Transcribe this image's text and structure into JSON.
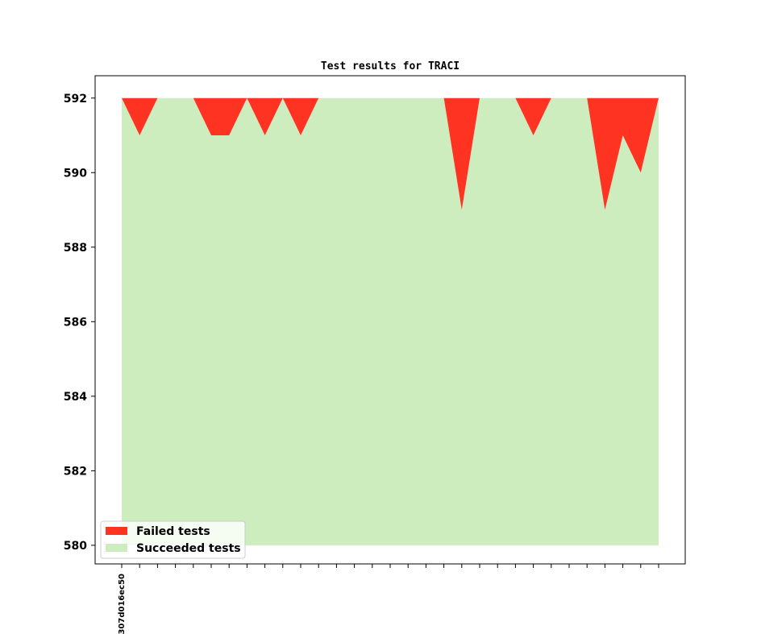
{
  "chart_data": {
    "type": "area",
    "title": "Test results for TRACI",
    "xlabel": "",
    "ylabel": "",
    "x_tick_count": 31,
    "x_tick_labels": [
      "307d016ec50"
    ],
    "ylim": [
      579.5,
      592.6
    ],
    "yticks": [
      580,
      582,
      584,
      586,
      588,
      590,
      592
    ],
    "grid": false,
    "legend_placement": "lower-left",
    "series": [
      {
        "name": "Failed tests",
        "color": "#ff3322",
        "values": [
          0,
          1,
          0,
          0,
          0,
          1,
          1,
          0,
          1,
          0,
          1,
          0,
          0,
          0,
          0,
          0,
          0,
          0,
          0,
          3,
          0,
          0,
          0,
          1,
          0,
          0,
          0,
          3,
          1,
          2,
          0
        ]
      },
      {
        "name": "Succeeded tests",
        "color": "#ceedbf",
        "values": [
          592,
          591,
          592,
          592,
          592,
          591,
          591,
          592,
          591,
          592,
          591,
          592,
          592,
          592,
          592,
          592,
          592,
          592,
          592,
          589,
          592,
          592,
          592,
          591,
          592,
          592,
          592,
          589,
          591,
          590,
          592
        ]
      }
    ],
    "total": 592,
    "baseline": 580
  }
}
